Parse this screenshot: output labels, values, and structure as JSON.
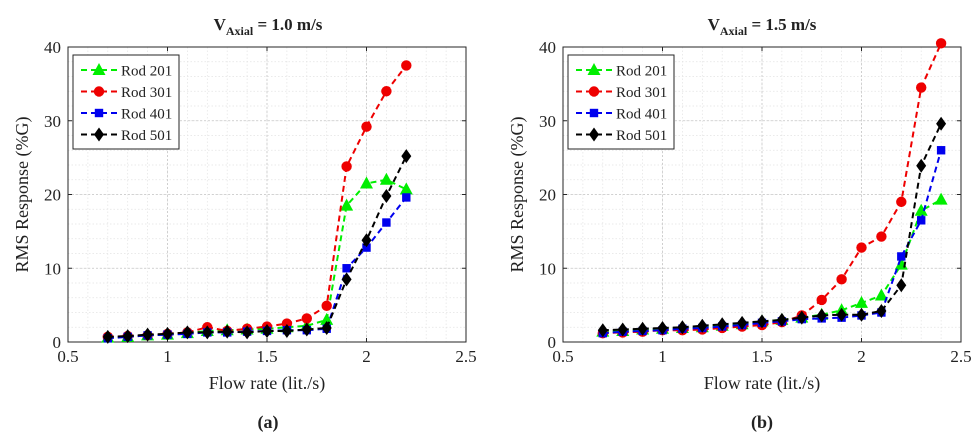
{
  "charts": [
    {
      "title_main": "V",
      "title_sub": "Axial",
      "title_rest": " = 1.0 m/s",
      "panel_label": "(a)"
    },
    {
      "title_main": "V",
      "title_sub": "Axial",
      "title_rest": " = 1.5 m/s",
      "panel_label": "(b)"
    }
  ],
  "chart_data": [
    {
      "type": "line",
      "title": "V_Axial = 1.0 m/s",
      "xlabel": "Flow rate (lit./s)",
      "ylabel": "RMS Response (%G)",
      "xlim": [
        0.5,
        2.5
      ],
      "ylim": [
        0,
        40
      ],
      "xticks": [
        0.5,
        1,
        1.5,
        2,
        2.5
      ],
      "yticks": [
        0,
        10,
        20,
        30,
        40
      ],
      "grid": true,
      "legend_position": "top-left",
      "series": [
        {
          "name": "Rod 201",
          "color": "#00ee00",
          "marker": "triangle",
          "x": [
            0.7,
            0.8,
            0.9,
            1.0,
            1.1,
            1.2,
            1.3,
            1.4,
            1.5,
            1.6,
            1.7,
            1.8,
            1.9,
            2.0,
            2.1,
            2.2
          ],
          "y": [
            0.6,
            0.7,
            0.9,
            1.0,
            1.2,
            1.5,
            1.6,
            1.7,
            1.8,
            2.0,
            2.2,
            3.0,
            18.5,
            21.5,
            22.0,
            20.7
          ]
        },
        {
          "name": "Rod 301",
          "color": "#ee0000",
          "marker": "circle",
          "x": [
            0.7,
            0.8,
            0.9,
            1.0,
            1.1,
            1.2,
            1.3,
            1.4,
            1.5,
            1.6,
            1.7,
            1.8,
            1.9,
            2.0,
            2.1,
            2.2
          ],
          "y": [
            0.7,
            0.8,
            0.9,
            1.1,
            1.3,
            2.0,
            1.5,
            1.8,
            2.1,
            2.5,
            3.2,
            4.9,
            23.8,
            29.2,
            34.0,
            37.5
          ]
        },
        {
          "name": "Rod 401",
          "color": "#0000ee",
          "marker": "square",
          "x": [
            0.7,
            0.8,
            0.9,
            1.0,
            1.1,
            1.2,
            1.3,
            1.4,
            1.5,
            1.6,
            1.7,
            1.8,
            1.9,
            2.0,
            2.1,
            2.2
          ],
          "y": [
            0.5,
            0.7,
            0.9,
            1.0,
            1.1,
            1.3,
            1.3,
            1.4,
            1.5,
            1.6,
            1.6,
            1.8,
            10.0,
            12.8,
            16.2,
            19.6
          ]
        },
        {
          "name": "Rod 501",
          "color": "#000000",
          "marker": "diamond",
          "x": [
            0.7,
            0.8,
            0.9,
            1.0,
            1.1,
            1.2,
            1.3,
            1.4,
            1.5,
            1.6,
            1.7,
            1.8,
            1.9,
            2.0,
            2.1,
            2.2
          ],
          "y": [
            0.7,
            0.8,
            1.0,
            1.1,
            1.3,
            1.3,
            1.4,
            1.3,
            1.5,
            1.5,
            1.7,
            1.9,
            8.5,
            13.8,
            19.8,
            25.2
          ]
        }
      ]
    },
    {
      "type": "line",
      "title": "V_Axial = 1.5 m/s",
      "xlabel": "Flow rate (lit./s)",
      "ylabel": "RMS Response (%G)",
      "xlim": [
        0.5,
        2.5
      ],
      "ylim": [
        0,
        40
      ],
      "xticks": [
        0.5,
        1,
        1.5,
        2,
        2.5
      ],
      "yticks": [
        0,
        10,
        20,
        30,
        40
      ],
      "grid": true,
      "legend_position": "top-left",
      "series": [
        {
          "name": "Rod 201",
          "color": "#00ee00",
          "marker": "triangle",
          "x": [
            0.7,
            0.8,
            0.9,
            1.0,
            1.1,
            1.2,
            1.3,
            1.4,
            1.5,
            1.6,
            1.7,
            1.8,
            1.9,
            2.0,
            2.1,
            2.2,
            2.3,
            2.4
          ],
          "y": [
            1.4,
            1.5,
            1.7,
            1.8,
            1.9,
            2.0,
            2.2,
            2.4,
            2.8,
            3.0,
            3.3,
            3.7,
            4.3,
            5.3,
            6.3,
            10.5,
            17.8,
            19.3
          ]
        },
        {
          "name": "Rod 301",
          "color": "#ee0000",
          "marker": "circle",
          "x": [
            0.7,
            0.8,
            0.9,
            1.0,
            1.1,
            1.2,
            1.3,
            1.4,
            1.5,
            1.6,
            1.7,
            1.8,
            1.9,
            2.0,
            2.1,
            2.2,
            2.3,
            2.4
          ],
          "y": [
            1.2,
            1.3,
            1.4,
            1.6,
            1.6,
            1.7,
            1.9,
            2.1,
            2.3,
            2.7,
            3.6,
            5.7,
            8.5,
            12.8,
            14.3,
            19.0,
            34.5,
            40.5
          ]
        },
        {
          "name": "Rod 401",
          "color": "#0000ee",
          "marker": "square",
          "x": [
            0.7,
            0.8,
            0.9,
            1.0,
            1.1,
            1.2,
            1.3,
            1.4,
            1.5,
            1.6,
            1.7,
            1.8,
            1.9,
            2.0,
            2.1,
            2.2,
            2.3,
            2.4
          ],
          "y": [
            1.2,
            1.4,
            1.5,
            1.6,
            1.8,
            1.9,
            2.1,
            2.3,
            2.6,
            2.8,
            3.1,
            3.2,
            3.3,
            3.6,
            4.0,
            11.6,
            16.5,
            26.0
          ]
        },
        {
          "name": "Rod 501",
          "color": "#000000",
          "marker": "diamond",
          "x": [
            0.7,
            0.8,
            0.9,
            1.0,
            1.1,
            1.2,
            1.3,
            1.4,
            1.5,
            1.6,
            1.7,
            1.8,
            1.9,
            2.0,
            2.1,
            2.2,
            2.3,
            2.4
          ],
          "y": [
            1.6,
            1.7,
            1.8,
            1.9,
            2.0,
            2.2,
            2.4,
            2.6,
            2.8,
            3.0,
            3.3,
            3.6,
            3.7,
            3.7,
            4.2,
            7.7,
            23.9,
            29.6
          ]
        }
      ]
    }
  ]
}
